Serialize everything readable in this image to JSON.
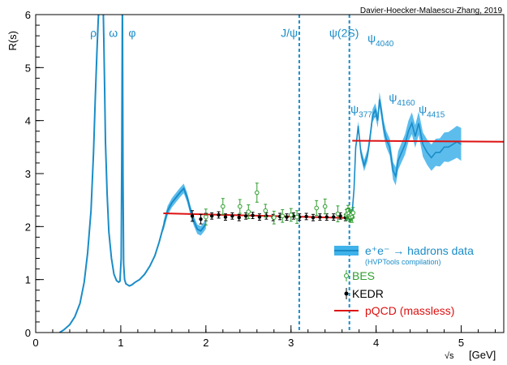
{
  "chart_data": {
    "type": "line",
    "credit": "Davier-Hoecker-Malaescu-Zhang, 2019",
    "ylabel": "R(s)",
    "xlabel_sqrt": "√s",
    "xlabel_unit": "[GeV]",
    "xlim": [
      0,
      5.5
    ],
    "ylim": [
      0,
      6
    ],
    "xticks": [
      "0",
      "1",
      "2",
      "3",
      "4",
      "5"
    ],
    "xtick_values": [
      0,
      1,
      2,
      3,
      4,
      5
    ],
    "yticks": [
      "0",
      "1",
      "2",
      "3",
      "4",
      "5",
      "6"
    ],
    "ytick_values": [
      0,
      1,
      2,
      3,
      4,
      5,
      6
    ],
    "resonance_labels": [
      {
        "text": "ρ",
        "sub": "",
        "x": 0.64,
        "y": 5.58
      },
      {
        "text": "ω",
        "sub": "",
        "x": 0.86,
        "y": 5.58
      },
      {
        "text": "φ",
        "sub": "",
        "x": 1.09,
        "y": 5.58
      },
      {
        "text": "J/ψ",
        "sub": "",
        "x": 2.88,
        "y": 5.58
      },
      {
        "text": "ψ(2S)",
        "sub": "",
        "x": 3.45,
        "y": 5.58
      },
      {
        "text": "ψ",
        "sub": "4040",
        "x": 3.9,
        "y": 5.48
      },
      {
        "text": "ψ",
        "sub": "3770",
        "x": 3.7,
        "y": 4.14
      },
      {
        "text": "ψ",
        "sub": "4160",
        "x": 4.15,
        "y": 4.36
      },
      {
        "text": "ψ",
        "sub": "4415",
        "x": 4.5,
        "y": 4.14
      }
    ],
    "narrow_resonances": [
      3.097,
      3.686
    ],
    "series": [
      {
        "name": "e+e- → hadrons data",
        "legend_main": "e⁺e⁻ → hadrons data",
        "legend_sub": "(HVPTools compilation)",
        "color": "#1a8cc8",
        "band_color": "#3fb2ea",
        "x": [
          0.28,
          0.33,
          0.4,
          0.46,
          0.52,
          0.57,
          0.61,
          0.65,
          0.68,
          0.7,
          0.72,
          0.735,
          0.75,
          0.76,
          0.775,
          0.79,
          0.8,
          0.81,
          0.82,
          0.84,
          0.86,
          0.89,
          0.92,
          0.95,
          0.975,
          0.99,
          1.005,
          1.012,
          1.019,
          1.026,
          1.033,
          1.045,
          1.06,
          1.08,
          1.1,
          1.13,
          1.17,
          1.22,
          1.28,
          1.34,
          1.4,
          1.45,
          1.5,
          1.55,
          1.6,
          1.65,
          1.7,
          1.74,
          1.78,
          1.82,
          1.86,
          1.9,
          1.94,
          1.98,
          2.0
        ],
        "y": [
          0.0,
          0.05,
          0.15,
          0.3,
          0.55,
          0.95,
          1.5,
          2.3,
          3.4,
          4.4,
          5.3,
          5.9,
          6.3,
          6.7,
          6.8,
          6.4,
          5.6,
          4.6,
          3.6,
          2.6,
          1.9,
          1.4,
          1.1,
          0.98,
          0.95,
          0.97,
          1.4,
          3.5,
          6.3,
          3.0,
          1.3,
          1.0,
          0.92,
          0.9,
          0.88,
          0.9,
          0.95,
          1.0,
          1.1,
          1.25,
          1.45,
          1.7,
          2.0,
          2.3,
          2.45,
          2.55,
          2.65,
          2.72,
          2.55,
          2.3,
          2.1,
          1.95,
          1.92,
          2.0,
          2.05
        ],
        "x2": [
          1.5,
          1.55,
          1.6,
          1.65,
          1.7,
          1.74,
          1.78,
          1.82,
          1.86,
          1.9,
          1.94,
          1.98,
          2.0
        ],
        "y2": [
          2.0,
          2.3,
          2.45,
          2.55,
          2.65,
          2.72,
          2.55,
          2.3,
          2.1,
          1.95,
          1.92,
          2.0,
          2.05
        ],
        "x3": [
          3.72,
          3.74,
          3.76,
          3.77,
          3.79,
          3.82,
          3.86,
          3.9,
          3.93,
          3.96,
          3.99,
          4.02,
          4.04,
          4.06,
          4.09,
          4.12,
          4.16,
          4.2,
          4.23,
          4.26,
          4.3,
          4.34,
          4.38,
          4.42,
          4.46,
          4.5,
          4.55,
          4.6,
          4.65,
          4.7,
          4.75,
          4.8,
          4.85,
          4.9,
          4.95,
          5.0
        ],
        "y3": [
          2.3,
          2.7,
          3.5,
          3.6,
          3.9,
          3.4,
          3.15,
          3.35,
          3.7,
          4.1,
          4.2,
          4.0,
          4.4,
          4.2,
          3.85,
          3.65,
          3.5,
          3.05,
          2.95,
          3.25,
          3.4,
          3.55,
          3.8,
          3.95,
          3.7,
          3.95,
          3.55,
          3.4,
          3.3,
          3.4,
          3.4,
          3.5,
          3.5,
          3.55,
          3.6,
          3.55
        ]
      },
      {
        "name": "BES",
        "color": "#2f9e2f",
        "x": [
          2.0,
          2.2,
          2.4,
          2.5,
          2.6,
          2.7,
          2.8,
          2.9,
          3.0,
          3.07,
          3.3,
          3.4,
          3.55,
          3.65,
          3.66,
          3.67,
          3.68,
          3.69,
          3.7,
          3.71,
          3.72,
          3.73
        ],
        "y": [
          2.18,
          2.38,
          2.38,
          2.28,
          2.64,
          2.3,
          2.17,
          2.2,
          2.22,
          2.18,
          2.35,
          2.38,
          2.24,
          2.22,
          2.24,
          2.3,
          2.25,
          2.2,
          2.18,
          2.22,
          2.18,
          2.26
        ],
        "err": [
          0.15,
          0.15,
          0.13,
          0.13,
          0.18,
          0.12,
          0.12,
          0.12,
          0.12,
          0.12,
          0.14,
          0.14,
          0.15,
          0.1,
          0.1,
          0.1,
          0.1,
          0.1,
          0.1,
          0.1,
          0.1,
          0.1
        ]
      },
      {
        "name": "KEDR",
        "color": "#000000",
        "x": [
          1.84,
          1.94,
          2.0,
          2.07,
          2.15,
          2.23,
          2.31,
          2.39,
          2.47,
          2.55,
          2.63,
          2.71,
          2.79,
          2.87,
          2.95,
          3.03,
          3.1,
          3.18,
          3.26,
          3.34,
          3.42,
          3.5,
          3.58,
          3.64,
          3.7
        ],
        "y": [
          2.2,
          2.14,
          2.18,
          2.2,
          2.22,
          2.18,
          2.2,
          2.17,
          2.2,
          2.21,
          2.18,
          2.2,
          2.17,
          2.19,
          2.18,
          2.2,
          2.18,
          2.19,
          2.17,
          2.18,
          2.18,
          2.18,
          2.2,
          2.17,
          2.2
        ],
        "err": [
          0.1,
          0.09,
          0.07,
          0.06,
          0.06,
          0.06,
          0.06,
          0.06,
          0.06,
          0.06,
          0.06,
          0.06,
          0.06,
          0.06,
          0.06,
          0.06,
          0.06,
          0.06,
          0.06,
          0.06,
          0.06,
          0.06,
          0.06,
          0.06,
          0.06
        ]
      },
      {
        "name": "pQCD (massless)",
        "color": "#dd1111",
        "segments": [
          {
            "x": [
              1.5,
              3.72
            ],
            "y": [
              2.25,
              2.16
            ]
          },
          {
            "x": [
              3.72,
              5.5
            ],
            "y": [
              3.62,
              3.6
            ]
          }
        ]
      }
    ],
    "legend": [
      {
        "key": "band",
        "label": "e⁺e⁻ → hadrons data",
        "sub": "(HVPTools compilation)",
        "color": "#1a8cc8"
      },
      {
        "key": "open-circle",
        "label": "BES",
        "color": "#2f9e2f"
      },
      {
        "key": "filled-dot",
        "label": "KEDR",
        "color": "#000000"
      },
      {
        "key": "line",
        "label": "pQCD (massless)",
        "color": "#dd1111"
      }
    ],
    "legend_position": "bottom-right",
    "grid": false
  }
}
